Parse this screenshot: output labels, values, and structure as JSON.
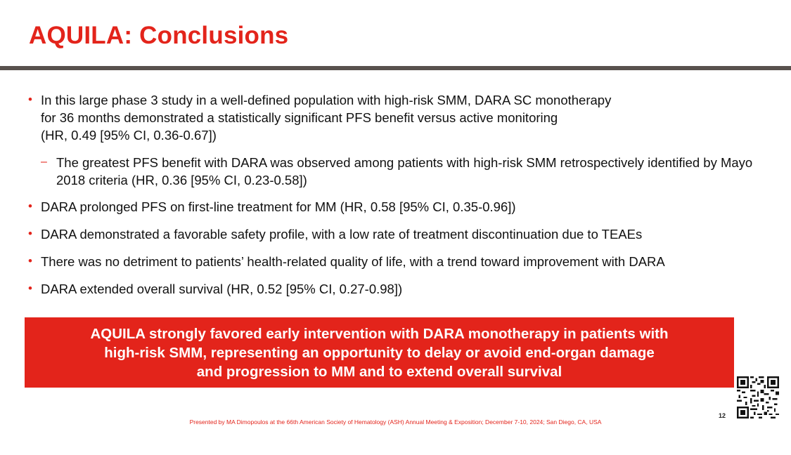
{
  "title": "AQUILA: Conclusions",
  "bullets": [
    {
      "lines": [
        "In this large phase 3 study in a well-defined population with high-risk SMM, DARA SC monotherapy",
        "for 36 months demonstrated a statistically significant PFS benefit versus active monitoring",
        "(HR, 0.49 [95% CI, 0.36-0.67])"
      ],
      "sub": {
        "lines": [
          "The greatest PFS benefit with DARA was observed among patients with high-risk SMM retrospectively",
          "identified by Mayo 2018 criteria (HR, 0.36 [95% CI, 0.23-0.58])"
        ]
      }
    },
    {
      "lines": [
        "DARA prolonged PFS on first-line treatment for MM (HR, 0.58 [95% CI, 0.35-0.96])"
      ]
    },
    {
      "lines": [
        "DARA demonstrated a favorable safety profile, with a low rate of treatment discontinuation due to TEAEs"
      ]
    },
    {
      "lines": [
        "There was no detriment to patients’ health-related quality of life, with a trend toward improvement with DARA"
      ]
    },
    {
      "lines": [
        "DARA extended overall survival (HR, 0.52 [95% CI, 0.27-0.98])"
      ]
    }
  ],
  "callout": {
    "lines": [
      "AQUILA strongly favored early intervention with DARA monotherapy in patients with",
      "high-risk SMM, representing an opportunity to delay or avoid end-organ damage",
      "and progression to MM and to extend overall survival"
    ]
  },
  "slide_number": "12",
  "footer": "Presented by MA Dimopoulos at the 66th American Society of Hematology (ASH) Annual Meeting & Exposition; December 7-10, 2024; San Diego, CA, USA",
  "qr_icon": "qr-code-icon",
  "colors": {
    "accent": "#e3241b",
    "rule": "#58514d",
    "text": "#111111"
  }
}
